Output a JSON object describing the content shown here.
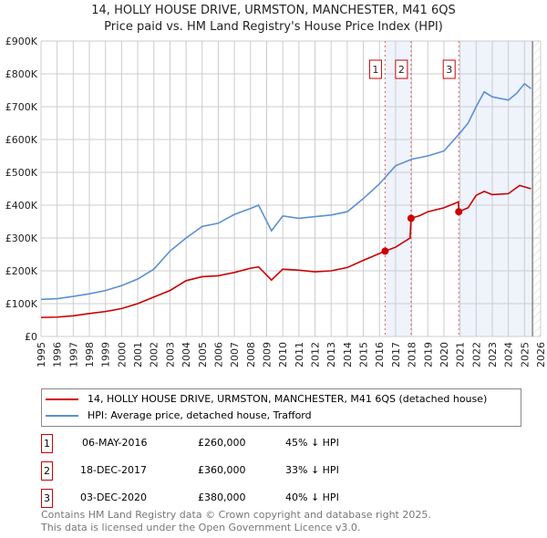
{
  "title": "14, HOLLY HOUSE DRIVE, URMSTON, MANCHESTER, M41 6QS",
  "subtitle": "Price paid vs. HM Land Registry's House Price Index (HPI)",
  "chart_data": {
    "type": "line",
    "title": "14, HOLLY HOUSE DRIVE, URMSTON, MANCHESTER, M41 6QS",
    "xlim": [
      1995,
      2026
    ],
    "ylim": [
      0,
      900000
    ],
    "y_ticks": [
      0,
      100000,
      200000,
      300000,
      400000,
      500000,
      600000,
      700000,
      800000,
      900000
    ],
    "y_tick_labels": [
      "£0",
      "£100K",
      "£200K",
      "£300K",
      "£400K",
      "£500K",
      "£600K",
      "£700K",
      "£800K",
      "£900K"
    ],
    "x_ticks": [
      "1995",
      "1996",
      "1997",
      "1998",
      "1999",
      "2000",
      "2001",
      "2002",
      "2003",
      "2004",
      "2005",
      "2006",
      "2007",
      "2008",
      "2009",
      "2010",
      "2011",
      "2012",
      "2013",
      "2014",
      "2015",
      "2016",
      "2017",
      "2018",
      "2019",
      "2020",
      "2021",
      "2022",
      "2023",
      "2024",
      "2025",
      "2026"
    ],
    "grid": true,
    "colors": {
      "property": "#cc0000",
      "hpi": "#5b8fd4",
      "shade": "#eef3fc"
    },
    "series": [
      {
        "name": "14, HOLLY HOUSE DRIVE, URMSTON, MANCHESTER, M41 6QS (detached house)",
        "x": [
          1995,
          1996,
          1997,
          1998,
          1999,
          2000,
          2001,
          2002,
          2003,
          2004,
          2005,
          2006,
          2007,
          2008,
          2008.5,
          2009.3,
          2010,
          2011,
          2012,
          2013,
          2014,
          2015,
          2016.35,
          2017,
          2017.9,
          2017.96,
          2018.5,
          2019,
          2020,
          2020.9,
          2020.92,
          2021.5,
          2022,
          2022.5,
          2023,
          2024,
          2024.7,
          2025.4
        ],
        "values": [
          58000,
          59000,
          63000,
          70000,
          76000,
          85000,
          100000,
          120000,
          140000,
          170000,
          182000,
          185000,
          195000,
          208000,
          212000,
          172000,
          205000,
          202000,
          197000,
          200000,
          210000,
          232000,
          260000,
          272000,
          300000,
          360000,
          368000,
          380000,
          392000,
          410000,
          380000,
          392000,
          430000,
          442000,
          432000,
          435000,
          460000,
          450000
        ]
      },
      {
        "name": "HPI: Average price, detached house, Trafford",
        "x": [
          1995,
          1996,
          1997,
          1998,
          1999,
          2000,
          2001,
          2002,
          2003,
          2004,
          2005,
          2006,
          2007,
          2008,
          2008.5,
          2009.3,
          2010,
          2011,
          2012,
          2013,
          2014,
          2015,
          2016,
          2017,
          2018,
          2019,
          2020,
          2021,
          2021.5,
          2022,
          2022.5,
          2023,
          2024,
          2024.5,
          2025,
          2025.4
        ],
        "values": [
          113000,
          115000,
          122000,
          130000,
          140000,
          155000,
          175000,
          205000,
          260000,
          300000,
          335000,
          345000,
          372000,
          390000,
          400000,
          322000,
          367000,
          360000,
          365000,
          370000,
          380000,
          420000,
          465000,
          520000,
          540000,
          550000,
          565000,
          620000,
          650000,
          700000,
          745000,
          730000,
          720000,
          740000,
          770000,
          755000
        ]
      }
    ],
    "annotations": [
      {
        "label": "1",
        "x": 2016.35,
        "y": 260000
      },
      {
        "label": "2",
        "x": 2017.96,
        "y": 360000
      },
      {
        "label": "3",
        "x": 2020.92,
        "y": 380000
      }
    ],
    "data_end": 2025.5
  },
  "legend": {
    "property": "14, HOLLY HOUSE DRIVE, URMSTON, MANCHESTER, M41 6QS (detached house)",
    "hpi": "HPI: Average price, detached house, Trafford"
  },
  "sales": [
    {
      "num": "1",
      "date": "06-MAY-2016",
      "price": "£260,000",
      "hpi": "45% ↓ HPI"
    },
    {
      "num": "2",
      "date": "18-DEC-2017",
      "price": "£360,000",
      "hpi": "33% ↓ HPI"
    },
    {
      "num": "3",
      "date": "03-DEC-2020",
      "price": "£380,000",
      "hpi": "40% ↓ HPI"
    }
  ],
  "footer": {
    "line1": "Contains HM Land Registry data © Crown copyright and database right 2025.",
    "line2": "This data is licensed under the Open Government Licence v3.0."
  }
}
